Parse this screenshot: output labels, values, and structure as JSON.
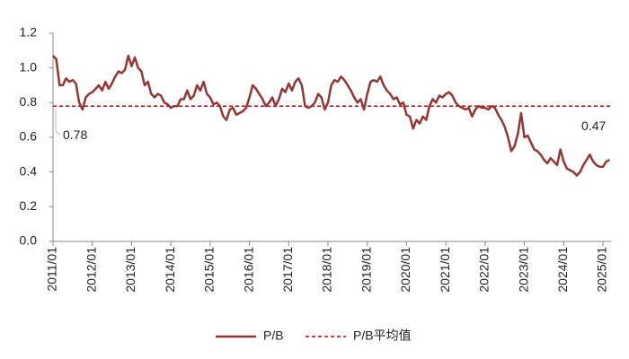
{
  "chart_data": {
    "type": "line",
    "x": [
      "2011/01",
      "2011/02",
      "2011/03",
      "2011/04",
      "2011/05",
      "2011/06",
      "2011/07",
      "2011/08",
      "2011/09",
      "2011/10",
      "2011/11",
      "2011/12",
      "2012/01",
      "2012/02",
      "2012/03",
      "2012/04",
      "2012/05",
      "2012/06",
      "2012/07",
      "2012/08",
      "2012/09",
      "2012/10",
      "2012/11",
      "2012/12",
      "2013/01",
      "2013/02",
      "2013/03",
      "2013/04",
      "2013/05",
      "2013/06",
      "2013/07",
      "2013/08",
      "2013/09",
      "2013/10",
      "2013/11",
      "2013/12",
      "2014/01",
      "2014/02",
      "2014/03",
      "2014/04",
      "2014/05",
      "2014/06",
      "2014/07",
      "2014/08",
      "2014/09",
      "2014/10",
      "2014/11",
      "2014/12",
      "2015/01",
      "2015/02",
      "2015/03",
      "2015/04",
      "2015/05",
      "2015/06",
      "2015/07",
      "2015/08",
      "2015/09",
      "2015/10",
      "2015/11",
      "2015/12",
      "2016/01",
      "2016/02",
      "2016/03",
      "2016/04",
      "2016/05",
      "2016/06",
      "2016/07",
      "2016/08",
      "2016/09",
      "2016/10",
      "2016/11",
      "2016/12",
      "2017/01",
      "2017/02",
      "2017/03",
      "2017/04",
      "2017/05",
      "2017/06",
      "2017/07",
      "2017/08",
      "2017/09",
      "2017/10",
      "2017/11",
      "2017/12",
      "2018/01",
      "2018/02",
      "2018/03",
      "2018/04",
      "2018/05",
      "2018/06",
      "2018/07",
      "2018/08",
      "2018/09",
      "2018/10",
      "2018/11",
      "2018/12",
      "2019/01",
      "2019/02",
      "2019/03",
      "2019/04",
      "2019/05",
      "2019/06",
      "2019/07",
      "2019/08",
      "2019/09",
      "2019/10",
      "2019/11",
      "2019/12",
      "2020/01",
      "2020/02",
      "2020/03",
      "2020/04",
      "2020/05",
      "2020/06",
      "2020/07",
      "2020/08",
      "2020/09",
      "2020/10",
      "2020/11",
      "2020/12",
      "2021/01",
      "2021/02",
      "2021/03",
      "2021/04",
      "2021/05",
      "2021/06",
      "2021/07",
      "2021/08",
      "2021/09",
      "2021/10",
      "2021/11",
      "2021/12",
      "2022/01",
      "2022/02",
      "2022/03",
      "2022/04",
      "2022/05",
      "2022/06",
      "2022/07",
      "2022/08",
      "2022/09",
      "2022/10",
      "2022/11",
      "2022/12",
      "2023/01",
      "2023/02",
      "2023/03",
      "2023/04",
      "2023/05",
      "2023/06",
      "2023/07",
      "2023/08",
      "2023/09",
      "2023/10",
      "2023/11",
      "2023/12",
      "2024/01",
      "2024/02",
      "2024/03",
      "2024/04",
      "2024/05",
      "2024/06",
      "2024/07",
      "2024/08",
      "2024/09",
      "2024/10",
      "2024/11",
      "2024/12",
      "2025/01",
      "2025/02",
      "2025/03"
    ],
    "series": [
      {
        "name": "P/B",
        "color": "#943634",
        "values": [
          1.07,
          1.05,
          0.9,
          0.9,
          0.94,
          0.92,
          0.93,
          0.91,
          0.8,
          0.76,
          0.83,
          0.85,
          0.86,
          0.88,
          0.9,
          0.87,
          0.92,
          0.88,
          0.91,
          0.95,
          0.98,
          0.97,
          0.99,
          1.07,
          1.01,
          1.06,
          1.0,
          0.98,
          0.9,
          0.92,
          0.85,
          0.83,
          0.85,
          0.84,
          0.8,
          0.79,
          0.77,
          0.78,
          0.78,
          0.82,
          0.82,
          0.87,
          0.82,
          0.84,
          0.9,
          0.87,
          0.92,
          0.85,
          0.83,
          0.79,
          0.8,
          0.78,
          0.72,
          0.7,
          0.76,
          0.77,
          0.73,
          0.74,
          0.75,
          0.77,
          0.83,
          0.9,
          0.88,
          0.85,
          0.82,
          0.78,
          0.8,
          0.83,
          0.78,
          0.82,
          0.88,
          0.86,
          0.91,
          0.87,
          0.92,
          0.94,
          0.9,
          0.78,
          0.77,
          0.78,
          0.8,
          0.85,
          0.83,
          0.76,
          0.8,
          0.9,
          0.93,
          0.92,
          0.95,
          0.93,
          0.9,
          0.87,
          0.83,
          0.8,
          0.82,
          0.76,
          0.85,
          0.92,
          0.93,
          0.92,
          0.95,
          0.9,
          0.87,
          0.85,
          0.82,
          0.83,
          0.79,
          0.8,
          0.73,
          0.72,
          0.65,
          0.7,
          0.68,
          0.72,
          0.7,
          0.78,
          0.82,
          0.8,
          0.84,
          0.83,
          0.85,
          0.86,
          0.84,
          0.8,
          0.78,
          0.77,
          0.76,
          0.77,
          0.72,
          0.76,
          0.78,
          0.77,
          0.77,
          0.76,
          0.78,
          0.77,
          0.73,
          0.7,
          0.66,
          0.6,
          0.52,
          0.55,
          0.62,
          0.74,
          0.6,
          0.61,
          0.57,
          0.53,
          0.52,
          0.5,
          0.47,
          0.45,
          0.48,
          0.46,
          0.44,
          0.53,
          0.46,
          0.42,
          0.41,
          0.4,
          0.38,
          0.4,
          0.44,
          0.47,
          0.5,
          0.46,
          0.44,
          0.43,
          0.43,
          0.46,
          0.47
        ]
      }
    ],
    "mean_line": {
      "name": "P/B平均值",
      "value": 0.78,
      "color": "#c00000"
    },
    "xticks": [
      "2011/01",
      "2012/01",
      "2013/01",
      "2014/01",
      "2015/01",
      "2016/01",
      "2017/01",
      "2018/01",
      "2019/01",
      "2020/01",
      "2021/01",
      "2022/01",
      "2023/01",
      "2024/01",
      "2025/01"
    ],
    "ylim": [
      0,
      1.2
    ],
    "yticks": [
      {
        "value": 0,
        "label": "0.0"
      },
      0.2,
      0.4,
      0.6,
      0.8,
      {
        "value": 1,
        "label": "1.0"
      },
      1.2
    ],
    "grid": false,
    "legend": "bottom"
  }
}
